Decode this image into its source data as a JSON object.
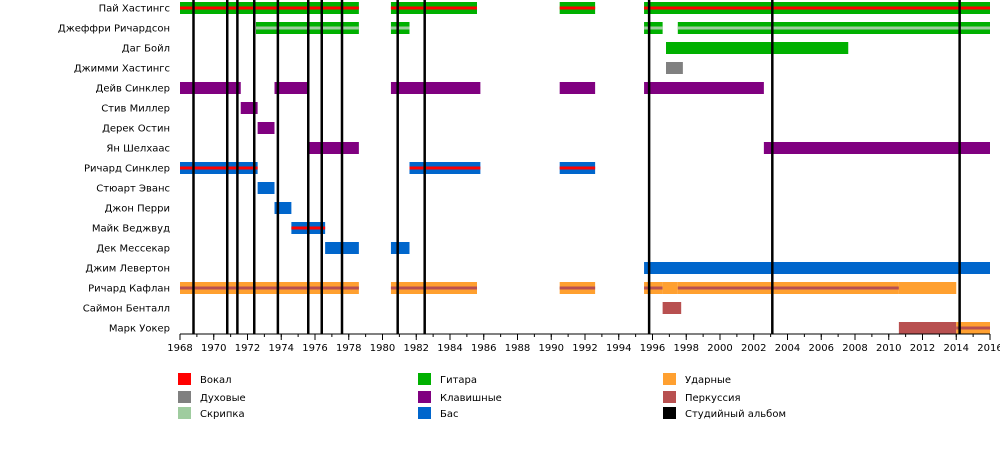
{
  "chart_data": {
    "type": "timeline",
    "x_range": [
      1968,
      2016
    ],
    "x_ticks": [
      "1968",
      "1970",
      "1972",
      "1974",
      "1976",
      "1978",
      "1980",
      "1982",
      "1984",
      "1986",
      "1988",
      "1990",
      "1992",
      "1994",
      "1996",
      "1998",
      "2000",
      "2002",
      "2004",
      "2006",
      "2008",
      "2010",
      "2012",
      "2014",
      "2016"
    ],
    "colors": {
      "vocal": "#ff0000",
      "winds": "#808080",
      "violin": "#9fcc9f",
      "guitar": "#00b000",
      "keys": "#800080",
      "bass": "#0066cc",
      "drums": "#ffa030",
      "perc": "#b85050",
      "album": "#000000"
    },
    "legend": [
      {
        "key": "vocal",
        "label": "Вокал"
      },
      {
        "key": "winds",
        "label": "Духовые"
      },
      {
        "key": "violin",
        "label": "Скрипка"
      },
      {
        "key": "guitar",
        "label": "Гитара"
      },
      {
        "key": "keys",
        "label": "Клавишные"
      },
      {
        "key": "bass",
        "label": "Бас"
      },
      {
        "key": "drums",
        "label": "Ударные"
      },
      {
        "key": "perc",
        "label": "Перкуссия"
      },
      {
        "key": "album",
        "label": "Студийный альбом"
      }
    ],
    "albums": [
      1968.8,
      1970.8,
      1971.4,
      1972.4,
      1973.8,
      1975.6,
      1976.4,
      1977.6,
      1980.9,
      1982.5,
      1995.8,
      2003.1,
      2014.2
    ],
    "members": [
      {
        "name": "Пай Хастингс",
        "periods": [
          {
            "start": 1968.0,
            "end": 1978.6,
            "primary": "guitar",
            "secondary": "vocal"
          },
          {
            "start": 1980.5,
            "end": 1985.6,
            "primary": "guitar",
            "secondary": "vocal"
          },
          {
            "start": 1990.5,
            "end": 1992.6,
            "primary": "guitar",
            "secondary": "vocal"
          },
          {
            "start": 1995.5,
            "end": 2016.0,
            "primary": "guitar",
            "secondary": "vocal"
          }
        ]
      },
      {
        "name": "Джеффри Ричардсон",
        "periods": [
          {
            "start": 1972.5,
            "end": 1978.6,
            "primary": "guitar",
            "secondary": "violin"
          },
          {
            "start": 1980.5,
            "end": 1981.6,
            "primary": "guitar",
            "secondary": "violin"
          },
          {
            "start": 1995.5,
            "end": 1996.6,
            "primary": "guitar",
            "secondary": "violin"
          },
          {
            "start": 1997.5,
            "end": 2016.0,
            "primary": "guitar",
            "secondary": "violin"
          }
        ]
      },
      {
        "name": "Даг Бойл",
        "periods": [
          {
            "start": 1996.8,
            "end": 2007.6,
            "primary": "guitar"
          }
        ]
      },
      {
        "name": "Джимми Хастингс",
        "periods": [
          {
            "start": 1996.8,
            "end": 1997.8,
            "primary": "winds"
          }
        ]
      },
      {
        "name": "Дейв Синклер",
        "periods": [
          {
            "start": 1968.0,
            "end": 1971.6,
            "primary": "keys"
          },
          {
            "start": 1973.6,
            "end": 1975.6,
            "primary": "keys"
          },
          {
            "start": 1980.5,
            "end": 1985.8,
            "primary": "keys"
          },
          {
            "start": 1990.5,
            "end": 1992.6,
            "primary": "keys"
          },
          {
            "start": 1995.5,
            "end": 2002.6,
            "primary": "keys"
          }
        ]
      },
      {
        "name": "Стив Миллер",
        "periods": [
          {
            "start": 1971.6,
            "end": 1972.6,
            "primary": "keys"
          }
        ]
      },
      {
        "name": "Дерек Остин",
        "periods": [
          {
            "start": 1972.6,
            "end": 1973.6,
            "primary": "keys"
          }
        ]
      },
      {
        "name": "Ян Шелхаас",
        "periods": [
          {
            "start": 1975.6,
            "end": 1978.6,
            "primary": "keys"
          },
          {
            "start": 2002.6,
            "end": 2016.0,
            "primary": "keys"
          }
        ]
      },
      {
        "name": "Ричард Синклер",
        "periods": [
          {
            "start": 1968.0,
            "end": 1972.6,
            "primary": "bass",
            "secondary": "vocal"
          },
          {
            "start": 1981.6,
            "end": 1985.8,
            "primary": "bass",
            "secondary": "vocal"
          },
          {
            "start": 1990.5,
            "end": 1992.6,
            "primary": "bass",
            "secondary": "vocal"
          }
        ]
      },
      {
        "name": "Стюарт Эванс",
        "periods": [
          {
            "start": 1972.6,
            "end": 1973.6,
            "primary": "bass"
          }
        ]
      },
      {
        "name": "Джон Перри",
        "periods": [
          {
            "start": 1973.6,
            "end": 1974.6,
            "primary": "bass"
          }
        ]
      },
      {
        "name": "Майк Веджвуд",
        "periods": [
          {
            "start": 1974.6,
            "end": 1976.6,
            "primary": "bass",
            "secondary": "vocal"
          }
        ]
      },
      {
        "name": "Дек Мессекар",
        "periods": [
          {
            "start": 1976.6,
            "end": 1978.6,
            "primary": "bass"
          },
          {
            "start": 1980.5,
            "end": 1981.6,
            "primary": "bass"
          }
        ]
      },
      {
        "name": "Джим Левертон",
        "periods": [
          {
            "start": 1995.5,
            "end": 2016.0,
            "primary": "bass"
          }
        ]
      },
      {
        "name": "Ричард Кафлан",
        "periods": [
          {
            "start": 1968.0,
            "end": 1978.6,
            "primary": "drums",
            "secondary": "perc"
          },
          {
            "start": 1980.5,
            "end": 1985.6,
            "primary": "drums",
            "secondary": "perc"
          },
          {
            "start": 1990.5,
            "end": 1992.6,
            "primary": "drums",
            "secondary": "perc"
          },
          {
            "start": 1995.5,
            "end": 1996.6,
            "primary": "drums",
            "secondary": "perc"
          },
          {
            "start": 1996.6,
            "end": 1997.5,
            "primary": "drums"
          },
          {
            "start": 1997.5,
            "end": 2010.6,
            "primary": "drums",
            "secondary": "perc"
          },
          {
            "start": 2010.6,
            "end": 2014.0,
            "primary": "drums"
          }
        ]
      },
      {
        "name": "Саймон Бенталл",
        "periods": [
          {
            "start": 1996.6,
            "end": 1997.7,
            "primary": "perc"
          }
        ]
      },
      {
        "name": "Марк Уокер",
        "periods": [
          {
            "start": 2010.6,
            "end": 2014.0,
            "primary": "perc"
          },
          {
            "start": 2014.0,
            "end": 2016.0,
            "primary": "drums",
            "secondary": "perc"
          }
        ]
      }
    ]
  }
}
